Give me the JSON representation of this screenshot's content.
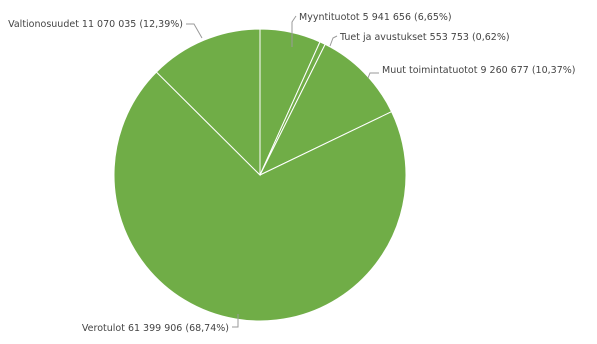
{
  "chart_data": {
    "type": "pie",
    "title": "",
    "slices": [
      {
        "name": "Myyntituotot",
        "value": 5941656,
        "value_text": "5 941 656",
        "percent_text": "6,65%"
      },
      {
        "name": "Tuet ja avustukset",
        "value": 553753,
        "value_text": "553 753",
        "percent_text": "0,62%"
      },
      {
        "name": "Muut toimintatuotot",
        "value": 9260677,
        "value_text": "9 260 677",
        "percent_text": "10,37%"
      },
      {
        "name": "Verotulot",
        "value": 61399906,
        "value_text": "61 399 906",
        "percent_text": "68,74%"
      },
      {
        "name": "Valtionosuudet",
        "value": 11070035,
        "value_text": "11 070 035",
        "percent_text": "12,39%"
      }
    ],
    "labels": [
      "Myyntituotot 5 941 656 (6,65%)",
      "Tuet ja avustukset 553 753 (0,62%)",
      "Muut toimintatuotot 9 260 677 (10,37%)",
      "Verotulot 61 399 906 (68,74%)",
      "Valtionosuudet 11 070 035 (12,39%)"
    ],
    "colors": {
      "slice": "#70ad47",
      "separator": "#ffffff",
      "leader": "#9a9a9a",
      "label": "#444444"
    },
    "start_angle": "12 o'clock",
    "direction": "clockwise",
    "legend": "none"
  }
}
